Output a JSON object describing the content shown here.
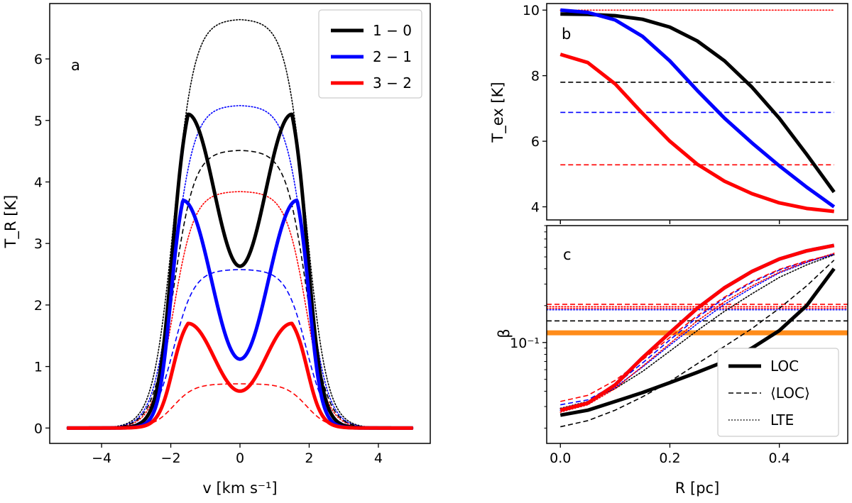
{
  "chart_data": [
    {
      "id": "a",
      "type": "line",
      "panel_label": "a",
      "xlabel": "v [km s⁻¹]",
      "ylabel": "T_R [K]",
      "xlim": [
        -5.5,
        5.5
      ],
      "ylim": [
        -0.25,
        6.9
      ],
      "xticks": [
        -4,
        -2,
        0,
        2,
        4
      ],
      "xtick_labels": [
        "−4",
        "−2",
        "0",
        "2",
        "4"
      ],
      "yticks": [
        0,
        1,
        2,
        3,
        4,
        5,
        6
      ],
      "ytick_labels": [
        "0",
        "1",
        "2",
        "3",
        "4",
        "5",
        "6"
      ],
      "legend": {
        "position": "top-right",
        "entries": [
          {
            "label": "1 − 0",
            "color": "#000000"
          },
          {
            "label": "2 − 1",
            "color": "#0000ff"
          },
          {
            "label": "3 − 2",
            "color": "#ff0000"
          }
        ]
      },
      "series": [
        {
          "name": "LOC 1-0",
          "transition": "1-0",
          "style": "solid",
          "color": "#000000",
          "kind": "reversed",
          "peak": 5.1,
          "center": 2.63,
          "peak_v": 1.5,
          "edge": 1.95,
          "width": 0.36
        },
        {
          "name": "LOC 2-1",
          "transition": "2-1",
          "style": "solid",
          "color": "#0000ff",
          "kind": "reversed",
          "peak": 3.7,
          "center": 1.12,
          "peak_v": 1.65,
          "edge": 2.0,
          "width": 0.3
        },
        {
          "name": "LOC 3-2",
          "transition": "3-2",
          "style": "solid",
          "color": "#ff0000",
          "kind": "reversed",
          "peak": 1.7,
          "center": 0.6,
          "peak_v": 1.5,
          "edge": 1.95,
          "width": 0.34
        },
        {
          "name": "<LOC> 1-0",
          "transition": "1-0",
          "style": "dashed",
          "color": "#000000",
          "kind": "flat",
          "plateau": 4.52,
          "edge": 1.92,
          "width": 0.3
        },
        {
          "name": "<LOC> 2-1",
          "transition": "2-1",
          "style": "dashed",
          "color": "#0000ff",
          "kind": "flat",
          "plateau": 2.58,
          "edge": 1.92,
          "width": 0.3
        },
        {
          "name": "<LOC> 3-2",
          "transition": "3-2",
          "style": "dashed",
          "color": "#ff0000",
          "kind": "flat",
          "plateau": 0.72,
          "edge": 1.92,
          "width": 0.3
        },
        {
          "name": "LTE 1-0",
          "transition": "1-0",
          "style": "dotted",
          "color": "#000000",
          "kind": "flat",
          "plateau": 6.65,
          "edge": 1.92,
          "width": 0.3
        },
        {
          "name": "LTE 2-1",
          "transition": "2-1",
          "style": "dotted",
          "color": "#0000ff",
          "kind": "flat",
          "plateau": 5.25,
          "edge": 1.92,
          "width": 0.3
        },
        {
          "name": "LTE 3-2",
          "transition": "3-2",
          "style": "dotted",
          "color": "#ff0000",
          "kind": "flat",
          "plateau": 3.85,
          "edge": 1.92,
          "width": 0.3
        }
      ],
      "v_range": [
        -5,
        5
      ]
    },
    {
      "id": "b",
      "type": "line",
      "panel_label": "b",
      "xlabel": "",
      "ylabel": "T_ex [K]",
      "xlim": [
        -0.025,
        0.525
      ],
      "ylim": [
        3.6,
        10.2
      ],
      "xticks": [
        0.0,
        0.2,
        0.4
      ],
      "yticks": [
        4,
        6,
        8,
        10
      ],
      "ytick_labels": [
        "4",
        "6",
        "8",
        "10"
      ],
      "series": [
        {
          "name": "LOC 1-0",
          "style": "solid",
          "color": "#000000",
          "x": [
            0.0,
            0.05,
            0.1,
            0.15,
            0.2,
            0.25,
            0.3,
            0.35,
            0.4,
            0.45,
            0.5
          ],
          "y": [
            9.88,
            9.87,
            9.83,
            9.72,
            9.48,
            9.06,
            8.45,
            7.65,
            6.7,
            5.6,
            4.45
          ]
        },
        {
          "name": "LOC 2-1",
          "style": "solid",
          "color": "#0000ff",
          "x": [
            0.0,
            0.05,
            0.1,
            0.15,
            0.2,
            0.25,
            0.3,
            0.35,
            0.4,
            0.45,
            0.5
          ],
          "y": [
            10.0,
            9.93,
            9.7,
            9.2,
            8.45,
            7.55,
            6.7,
            5.95,
            5.25,
            4.6,
            4.0
          ]
        },
        {
          "name": "LOC 3-2",
          "style": "solid",
          "color": "#ff0000",
          "x": [
            0.0,
            0.05,
            0.1,
            0.15,
            0.2,
            0.25,
            0.3,
            0.35,
            0.4,
            0.45,
            0.5
          ],
          "y": [
            8.65,
            8.4,
            7.75,
            6.85,
            6.0,
            5.3,
            4.78,
            4.4,
            4.12,
            3.95,
            3.86
          ]
        },
        {
          "name": "<LOC> 1-0",
          "style": "dashed",
          "color": "#000000",
          "x": [
            0.0,
            0.5
          ],
          "y": [
            7.8,
            7.8
          ]
        },
        {
          "name": "<LOC> 2-1",
          "style": "dashed",
          "color": "#0000ff",
          "x": [
            0.0,
            0.5
          ],
          "y": [
            6.88,
            6.88
          ]
        },
        {
          "name": "<LOC> 3-2",
          "style": "dashed",
          "color": "#ff0000",
          "x": [
            0.0,
            0.5
          ],
          "y": [
            5.28,
            5.28
          ]
        },
        {
          "name": "LTE",
          "style": "dotted",
          "color": "#ff0000",
          "x": [
            0.0,
            0.5
          ],
          "y": [
            10.0,
            10.0
          ]
        }
      ]
    },
    {
      "id": "c",
      "type": "line",
      "panel_label": "c",
      "xlabel": "R [pc]",
      "ylabel": "β",
      "yscale": "log",
      "xlim": [
        -0.025,
        0.525
      ],
      "ylim": [
        0.015,
        0.9
      ],
      "xticks": [
        0.0,
        0.2,
        0.4
      ],
      "xtick_labels": [
        "0.0",
        "0.2",
        "0.4"
      ],
      "yticks": [
        0.1
      ],
      "ytick_labels": [
        "10⁻¹"
      ],
      "legend": {
        "position": "bottom-right",
        "entries": [
          {
            "label": "LOC",
            "style": "solid"
          },
          {
            "label": "⟨LOC⟩",
            "style": "dashed"
          },
          {
            "label": "LTE",
            "style": "dotted"
          }
        ]
      },
      "series": [
        {
          "name": "LOC 1-0",
          "style": "solid",
          "color": "#000000",
          "x": [
            0.0,
            0.05,
            0.1,
            0.15,
            0.2,
            0.25,
            0.3,
            0.35,
            0.4,
            0.45,
            0.5
          ],
          "y": [
            0.0255,
            0.028,
            0.033,
            0.039,
            0.047,
            0.057,
            0.07,
            0.09,
            0.125,
            0.2,
            0.4
          ]
        },
        {
          "name": "LOC 2-1",
          "style": "solid",
          "color": "#0000ff",
          "x": [
            0.0,
            0.05,
            0.1,
            0.15,
            0.2,
            0.25,
            0.3,
            0.35,
            0.4,
            0.45,
            0.5
          ],
          "y": [
            0.028,
            0.032,
            0.045,
            0.075,
            0.12,
            0.19,
            0.28,
            0.38,
            0.48,
            0.56,
            0.62
          ]
        },
        {
          "name": "LOC 3-2",
          "style": "solid",
          "color": "#ff0000",
          "x": [
            0.0,
            0.05,
            0.1,
            0.15,
            0.2,
            0.25,
            0.3,
            0.35,
            0.4,
            0.45,
            0.5
          ],
          "y": [
            0.028,
            0.032,
            0.045,
            0.075,
            0.12,
            0.19,
            0.28,
            0.38,
            0.48,
            0.56,
            0.62
          ]
        },
        {
          "name": "<LOC> 1-0",
          "style": "dashed",
          "color": "#000000",
          "x": [
            0.0,
            0.05,
            0.1,
            0.15,
            0.2,
            0.25,
            0.3,
            0.35,
            0.4,
            0.45,
            0.5
          ],
          "y": [
            0.0205,
            0.023,
            0.028,
            0.036,
            0.048,
            0.067,
            0.093,
            0.13,
            0.19,
            0.29,
            0.47
          ]
        },
        {
          "name": "<LOC> 2-1",
          "style": "dashed",
          "color": "#0000ff",
          "x": [
            0.0,
            0.05,
            0.1,
            0.15,
            0.2,
            0.25,
            0.3,
            0.35,
            0.4,
            0.45,
            0.5
          ],
          "y": [
            0.031,
            0.034,
            0.045,
            0.068,
            0.105,
            0.16,
            0.23,
            0.31,
            0.39,
            0.46,
            0.52
          ]
        },
        {
          "name": "<LOC> 3-2",
          "style": "dashed",
          "color": "#ff0000",
          "x": [
            0.0,
            0.05,
            0.1,
            0.15,
            0.2,
            0.25,
            0.3,
            0.35,
            0.4,
            0.45,
            0.5
          ],
          "y": [
            0.033,
            0.037,
            0.049,
            0.072,
            0.11,
            0.165,
            0.235,
            0.315,
            0.395,
            0.465,
            0.525
          ]
        },
        {
          "name": "LTE 1-0",
          "style": "dotted",
          "color": "#000000",
          "x": [
            0.0,
            0.05,
            0.1,
            0.15,
            0.2,
            0.25,
            0.3,
            0.35,
            0.4,
            0.45,
            0.5
          ],
          "y": [
            0.029,
            0.033,
            0.042,
            0.058,
            0.085,
            0.125,
            0.18,
            0.25,
            0.34,
            0.43,
            0.52
          ]
        },
        {
          "name": "LTE 2-1",
          "style": "dotted",
          "color": "#0000ff",
          "x": [
            0.0,
            0.05,
            0.1,
            0.15,
            0.2,
            0.25,
            0.3,
            0.35,
            0.4,
            0.45,
            0.5
          ],
          "y": [
            0.028,
            0.032,
            0.043,
            0.063,
            0.095,
            0.142,
            0.205,
            0.28,
            0.37,
            0.45,
            0.53
          ]
        },
        {
          "name": "LTE 3-2",
          "style": "dotted",
          "color": "#ff0000",
          "x": [
            0.0,
            0.05,
            0.1,
            0.15,
            0.2,
            0.25,
            0.3,
            0.35,
            0.4,
            0.45,
            0.5
          ],
          "y": [
            0.027,
            0.031,
            0.042,
            0.064,
            0.098,
            0.15,
            0.215,
            0.29,
            0.375,
            0.455,
            0.535
          ]
        },
        {
          "name": "<LOC> 1-0 mean",
          "style": "dashed",
          "color": "#000000",
          "x": [
            -0.025,
            0.525
          ],
          "y": [
            0.15,
            0.15
          ]
        },
        {
          "name": "<LOC> 3-2 mean",
          "style": "dashed",
          "color": "#ff0000",
          "x": [
            -0.025,
            0.525
          ],
          "y": [
            0.205,
            0.205
          ]
        },
        {
          "name": "LTE 2-1 mean",
          "style": "dotted",
          "color": "#0000ff",
          "x": [
            -0.025,
            0.525
          ],
          "y": [
            0.185,
            0.185
          ]
        },
        {
          "name": "LTE 3-2 mean",
          "style": "dotted",
          "color": "#ff0000",
          "x": [
            -0.025,
            0.525
          ],
          "y": [
            0.19,
            0.19
          ]
        },
        {
          "name": "LOC 3-2 mean",
          "style": "dotted",
          "color": "#ff0000",
          "x": [
            -0.025,
            0.525
          ],
          "y": [
            0.196,
            0.196
          ]
        },
        {
          "name": "reference",
          "style": "thick",
          "color": "#ff8c1a",
          "x": [
            -0.025,
            0.525
          ],
          "y": [
            0.12,
            0.12
          ]
        }
      ]
    }
  ]
}
